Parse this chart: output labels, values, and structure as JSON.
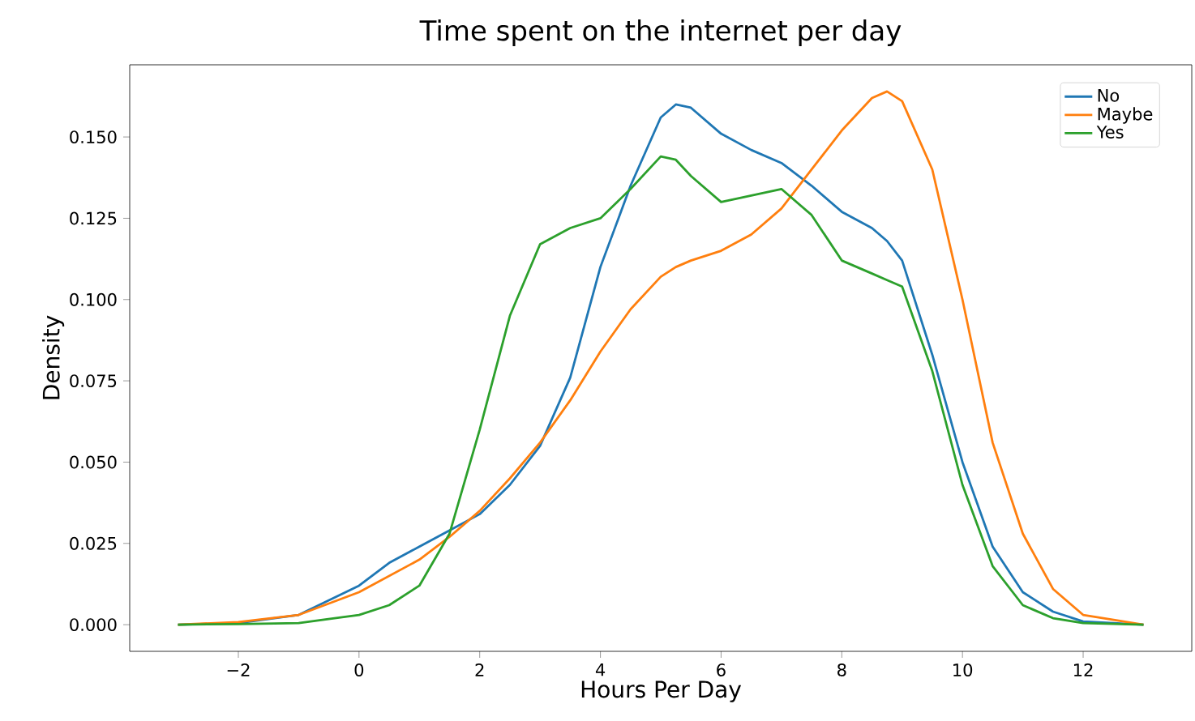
{
  "chart_data": {
    "type": "line",
    "title": "Time spent on the internet per day",
    "xlabel": "Hours Per Day",
    "ylabel": "Density",
    "x": [
      -3,
      -2,
      -1,
      0,
      0.5,
      1,
      1.5,
      2,
      2.5,
      3,
      3.5,
      4,
      4.5,
      5,
      5.25,
      5.5,
      6,
      6.5,
      7,
      7.5,
      8,
      8.5,
      8.75,
      9,
      9.5,
      10,
      10.5,
      11,
      11.5,
      12,
      13
    ],
    "series": [
      {
        "name": "No",
        "color": "#1f77b4",
        "values": [
          0,
          0.0005,
          0.003,
          0.012,
          0.019,
          0.024,
          0.029,
          0.034,
          0.043,
          0.055,
          0.076,
          0.11,
          0.135,
          0.156,
          0.16,
          0.159,
          0.151,
          0.146,
          0.142,
          0.135,
          0.127,
          0.122,
          0.118,
          0.112,
          0.083,
          0.05,
          0.024,
          0.01,
          0.004,
          0.001,
          0
        ]
      },
      {
        "name": "Maybe",
        "color": "#ff7f0e",
        "values": [
          0,
          0.0008,
          0.003,
          0.01,
          0.015,
          0.02,
          0.027,
          0.035,
          0.045,
          0.056,
          0.069,
          0.084,
          0.097,
          0.107,
          0.11,
          0.112,
          0.115,
          0.12,
          0.128,
          0.14,
          0.152,
          0.162,
          0.164,
          0.161,
          0.14,
          0.1,
          0.056,
          0.028,
          0.011,
          0.003,
          0
        ]
      },
      {
        "name": "Yes",
        "color": "#2ca02c",
        "values": [
          0,
          0.0002,
          0.0005,
          0.003,
          0.006,
          0.012,
          0.028,
          0.06,
          0.095,
          0.117,
          0.122,
          0.125,
          0.134,
          0.144,
          0.143,
          0.138,
          0.13,
          0.132,
          0.134,
          0.126,
          0.112,
          0.108,
          0.106,
          0.104,
          0.078,
          0.043,
          0.018,
          0.006,
          0.002,
          0.0005,
          0
        ]
      }
    ],
    "xlim": [
      -3.8,
      13.8
    ],
    "ylim": [
      -0.0082,
      0.1722
    ],
    "xticks": [
      {
        "value": -2,
        "label": "−2"
      },
      0,
      2,
      4,
      6,
      8,
      10,
      12
    ],
    "yticks": [
      {
        "value": 0,
        "label": "0.000"
      },
      {
        "value": 0.025,
        "label": "0.025"
      },
      {
        "value": 0.05,
        "label": "0.050"
      },
      {
        "value": 0.075,
        "label": "0.075"
      },
      {
        "value": 0.1,
        "label": "0.100"
      },
      {
        "value": 0.125,
        "label": "0.125"
      },
      {
        "value": 0.15,
        "label": "0.150"
      }
    ],
    "legend": "top right",
    "grid": false,
    "marker": "none",
    "line_style": "solid"
  }
}
